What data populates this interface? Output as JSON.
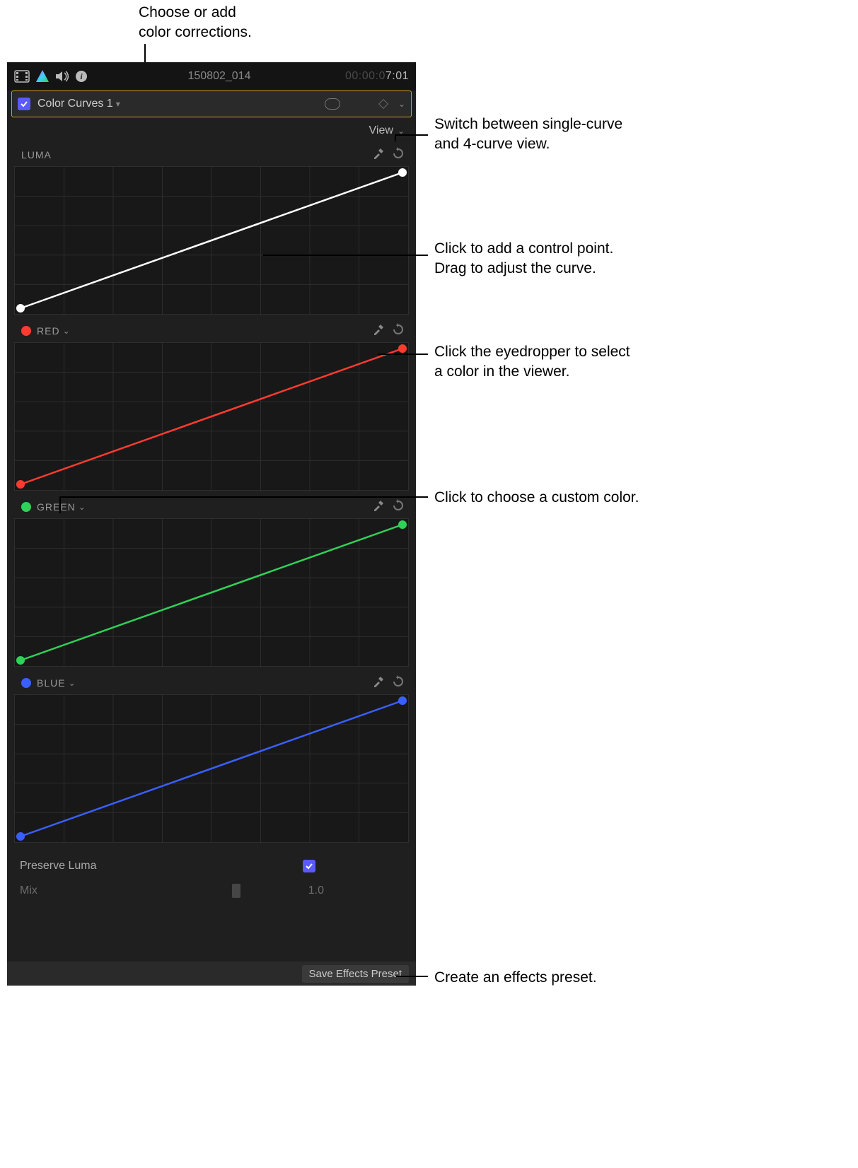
{
  "callouts": {
    "choose": "Choose or add\ncolor corrections.",
    "view": "Switch between single-curve\nand 4-curve view.",
    "controlpoint": "Click to add a control point.\nDrag to adjust the curve.",
    "eyedropper": "Click the eyedropper to select\na color in the viewer.",
    "customcolor": "Click to choose a custom color.",
    "preset": "Create an effects preset."
  },
  "header": {
    "clip_title": "150802_014",
    "timecode_prefix": "00:00:0",
    "timecode_suffix": "7:01"
  },
  "effect": {
    "name": "Color Curves 1"
  },
  "view_label": "View",
  "curves": [
    {
      "label": "LUMA",
      "has_swatch": false,
      "has_chevron": false,
      "swatch_color": "#ffffff",
      "line_color": "#ffffff",
      "point_color": "#ffffff"
    },
    {
      "label": "RED",
      "has_swatch": true,
      "has_chevron": true,
      "swatch_color": "#ff3b30",
      "line_color": "#ff3b30",
      "point_color": "#ff3b30"
    },
    {
      "label": "GREEN",
      "has_swatch": true,
      "has_chevron": true,
      "swatch_color": "#30d158",
      "line_color": "#30d158",
      "point_color": "#30d158"
    },
    {
      "label": "BLUE",
      "has_swatch": true,
      "has_chevron": true,
      "swatch_color": "#3a5fff",
      "line_color": "#3a5fff",
      "point_color": "#3a5fff"
    }
  ],
  "params": {
    "preserve_luma_label": "Preserve Luma",
    "preserve_luma_checked": true,
    "mix_label": "Mix",
    "mix_value": "1.0"
  },
  "footer": {
    "save_label": "Save Effects Preset"
  },
  "colors": {
    "panel_bg": "#1f1f1f",
    "grid": "#2c2c2c",
    "highlight_border": "#d0a030",
    "checkbox": "#5a5aff"
  }
}
